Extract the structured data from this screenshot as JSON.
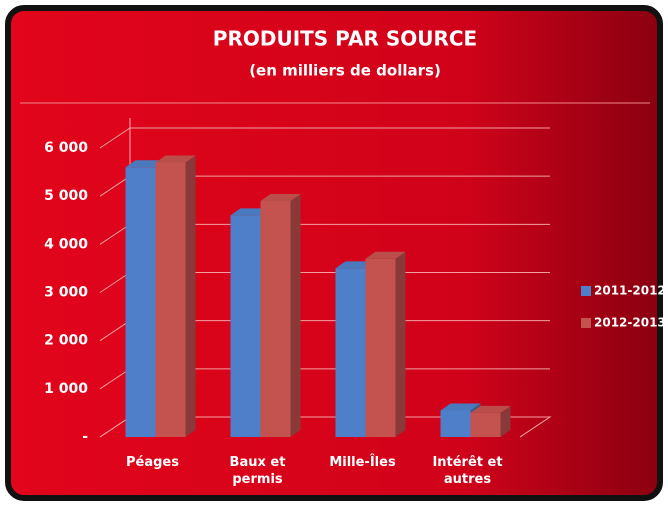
{
  "chart_data": {
    "type": "bar3d",
    "title": "PRODUITS PAR SOURCE",
    "subtitle": "(en milliers de dollars)",
    "categories": [
      "Péages",
      "Baux et permis",
      "Mille-Îles",
      "Intérêt et autres"
    ],
    "series": [
      {
        "name": "2011-2012",
        "color": "#4f7fc8",
        "values": [
          5600,
          4600,
          3500,
          550
        ]
      },
      {
        "name": "2012-2013",
        "color": "#c4524f",
        "values": [
          5700,
          4900,
          3700,
          500
        ]
      }
    ],
    "ylim": [
      0,
      6000
    ],
    "yticks": [
      {
        "value": 0,
        "label": "-"
      },
      {
        "value": 1000,
        "label": "1 000"
      },
      {
        "value": 2000,
        "label": "2 000"
      },
      {
        "value": 3000,
        "label": "3 000"
      },
      {
        "value": 4000,
        "label": "4 000"
      },
      {
        "value": 5000,
        "label": "5 000"
      },
      {
        "value": 6000,
        "label": "6 000"
      }
    ],
    "grid": true,
    "legend": "right"
  }
}
